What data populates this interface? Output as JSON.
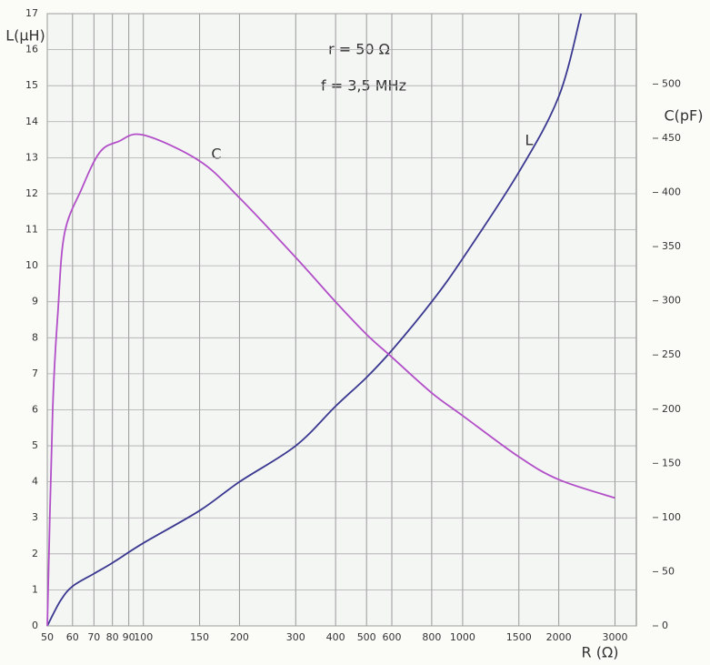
{
  "chart_data": {
    "type": "line",
    "x_label": "R (Ω)",
    "y_label": "L(μH)",
    "y2_label": "C(pF)",
    "annotations": [
      "r = 50 Ω",
      "f = 3,5 MHz"
    ],
    "xscale": "log",
    "grid": true,
    "xlim": [
      50,
      3500
    ],
    "ylim": [
      0,
      17
    ],
    "y2lim": [
      0,
      565
    ],
    "xticks": [
      50,
      60,
      70,
      80,
      90,
      100,
      150,
      200,
      300,
      400,
      500,
      600,
      800,
      1000,
      1500,
      2000,
      3000
    ],
    "yticks": [
      0,
      1,
      2,
      3,
      4,
      5,
      6,
      7,
      8,
      9,
      10,
      11,
      12,
      13,
      14,
      15,
      16,
      17
    ],
    "y2ticks": [
      0,
      50,
      100,
      150,
      200,
      250,
      300,
      350,
      400,
      450,
      500
    ],
    "series": [
      {
        "name": "L",
        "color": "#3a3890",
        "axis": "y",
        "x": [
          50,
          55,
          60,
          70,
          80,
          100,
          150,
          200,
          300,
          400,
          500,
          600,
          800,
          1000,
          1500,
          2000,
          2350
        ],
        "values": [
          0,
          0.7,
          1.1,
          1.45,
          1.75,
          2.3,
          3.2,
          4.0,
          5.0,
          6.1,
          6.9,
          7.65,
          9.0,
          10.2,
          12.6,
          14.7,
          17
        ]
      },
      {
        "name": "C",
        "color": "#b24fc8",
        "axis": "y2",
        "x": [
          50,
          52,
          54,
          56.6,
          64,
          73,
          83.5,
          100,
          150,
          200,
          300,
          400,
          500,
          600,
          800,
          1000,
          1500,
          2000,
          3000
        ],
        "values": [
          0,
          200,
          290,
          362,
          403,
          437,
          447,
          453,
          429,
          395,
          340,
          299,
          269,
          248,
          215,
          194,
          156,
          135,
          118
        ]
      }
    ]
  }
}
